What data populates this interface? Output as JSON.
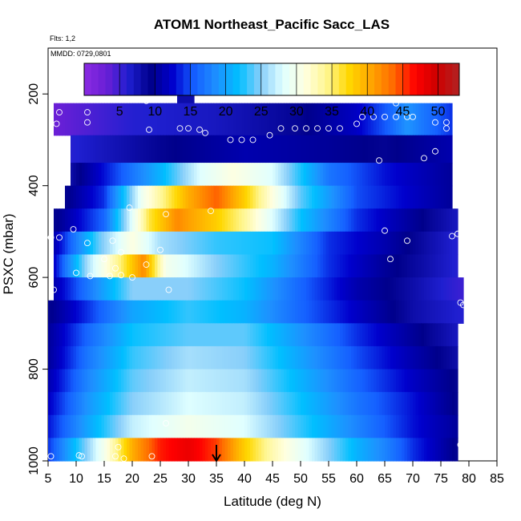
{
  "chart_data": {
    "type": "heatmap",
    "title": "ATOM1 Northeast_Pacific Sacc_LAS",
    "flights_note": "Flts: 1,2",
    "date_note": "MMDD: 0729,0801",
    "xlabel": "Latitude (deg N)",
    "ylabel": "PSXC (mbar)",
    "xlim": [
      5,
      85
    ],
    "ylim": [
      1000,
      100
    ],
    "y_reversed": true,
    "x_ticks": [
      "5",
      "10",
      "15",
      "20",
      "25",
      "30",
      "35",
      "40",
      "45",
      "50",
      "55",
      "60",
      "65",
      "70",
      "75",
      "80",
      "85"
    ],
    "y_ticks": [
      "200",
      "400",
      "600",
      "800",
      "1000"
    ],
    "colorbar": {
      "range": [
        0,
        53
      ],
      "ticks": [
        "5",
        "10",
        "15",
        "20",
        "25",
        "30",
        "35",
        "40",
        "45",
        "50"
      ],
      "colors": [
        "#8a2be2",
        "#6a1fd6",
        "#1f1fd0",
        "#00008b",
        "#0000cd",
        "#1560ff",
        "#1e90ff",
        "#00bfff",
        "#87cefa",
        "#e0ffff",
        "#ffffe0",
        "#fff68f",
        "#ffd700",
        "#ffa500",
        "#ff6a00",
        "#ff0000",
        "#cd0000",
        "#b22222"
      ],
      "grid": true
    },
    "bands": [
      {
        "p": [
          180,
          220
        ],
        "x": [
          28,
          31
        ],
        "v": [
          [
            28,
            8
          ],
          [
            31,
            8
          ]
        ]
      },
      {
        "p": [
          220,
          290
        ],
        "x": [
          6,
          77
        ],
        "v": [
          [
            6,
            3
          ],
          [
            20,
            6
          ],
          [
            35,
            7
          ],
          [
            50,
            9
          ],
          [
            60,
            12
          ],
          [
            66,
            16
          ],
          [
            69,
            19
          ],
          [
            72,
            17
          ],
          [
            77,
            14
          ]
        ]
      },
      {
        "p": [
          290,
          350
        ],
        "x": [
          9,
          77
        ],
        "v": [
          [
            9,
            6
          ],
          [
            25,
            9
          ],
          [
            40,
            11
          ],
          [
            55,
            10
          ],
          [
            65,
            9
          ],
          [
            77,
            11
          ]
        ]
      },
      {
        "p": [
          350,
          400
        ],
        "x": [
          9,
          77
        ],
        "v": [
          [
            9,
            8
          ],
          [
            15,
            13
          ],
          [
            25,
            21
          ],
          [
            32,
            28
          ],
          [
            38,
            31
          ],
          [
            45,
            28
          ],
          [
            55,
            17
          ],
          [
            65,
            13
          ],
          [
            77,
            10
          ]
        ]
      },
      {
        "p": [
          400,
          450
        ],
        "x": [
          8,
          77
        ],
        "v": [
          [
            8,
            9
          ],
          [
            15,
            14
          ],
          [
            22,
            30
          ],
          [
            30,
            40
          ],
          [
            35,
            44
          ],
          [
            40,
            38
          ],
          [
            50,
            24
          ],
          [
            60,
            15
          ],
          [
            70,
            12
          ],
          [
            77,
            10
          ]
        ]
      },
      {
        "p": [
          450,
          500
        ],
        "x": [
          6,
          78
        ],
        "v": [
          [
            6,
            9
          ],
          [
            15,
            16
          ],
          [
            23,
            36
          ],
          [
            28,
            42
          ],
          [
            35,
            38
          ],
          [
            40,
            34
          ],
          [
            50,
            22
          ],
          [
            60,
            14
          ],
          [
            70,
            10
          ],
          [
            78,
            7
          ]
        ]
      },
      {
        "p": [
          500,
          550
        ],
        "x": [
          6,
          78
        ],
        "v": [
          [
            6,
            11
          ],
          [
            14,
            24
          ],
          [
            20,
            31
          ],
          [
            25,
            26
          ],
          [
            35,
            23
          ],
          [
            45,
            22
          ],
          [
            55,
            14
          ],
          [
            65,
            11
          ],
          [
            70,
            9
          ],
          [
            78,
            6
          ]
        ]
      },
      {
        "p": [
          550,
          600
        ],
        "x": [
          6,
          78
        ],
        "v": [
          [
            6,
            12
          ],
          [
            12,
            26
          ],
          [
            18,
            35
          ],
          [
            22,
            42
          ],
          [
            26,
            30
          ],
          [
            35,
            25
          ],
          [
            45,
            21
          ],
          [
            55,
            14
          ],
          [
            65,
            10
          ],
          [
            72,
            8
          ],
          [
            78,
            6
          ]
        ]
      },
      {
        "p": [
          600,
          650
        ],
        "x": [
          6,
          79
        ],
        "v": [
          [
            6,
            11
          ],
          [
            12,
            17
          ],
          [
            20,
            25
          ],
          [
            30,
            25
          ],
          [
            40,
            22
          ],
          [
            50,
            16
          ],
          [
            60,
            11
          ],
          [
            70,
            8
          ],
          [
            79,
            5
          ]
        ]
      },
      {
        "p": [
          650,
          700
        ],
        "x": [
          5,
          79
        ],
        "v": [
          [
            5,
            9
          ],
          [
            12,
            14
          ],
          [
            20,
            20
          ],
          [
            30,
            23
          ],
          [
            40,
            21
          ],
          [
            50,
            16
          ],
          [
            60,
            12
          ],
          [
            70,
            8
          ],
          [
            79,
            6
          ]
        ]
      },
      {
        "p": [
          700,
          750
        ],
        "x": [
          5,
          78
        ],
        "v": [
          [
            5,
            10
          ],
          [
            12,
            16
          ],
          [
            20,
            22
          ],
          [
            30,
            24
          ],
          [
            40,
            24
          ],
          [
            50,
            19
          ],
          [
            60,
            14
          ],
          [
            70,
            10
          ],
          [
            78,
            7
          ]
        ]
      },
      {
        "p": [
          750,
          800
        ],
        "x": [
          5,
          78
        ],
        "v": [
          [
            5,
            10
          ],
          [
            12,
            17
          ],
          [
            20,
            23
          ],
          [
            30,
            26
          ],
          [
            40,
            25
          ],
          [
            50,
            20
          ],
          [
            60,
            15
          ],
          [
            70,
            11
          ],
          [
            78,
            8
          ]
        ]
      },
      {
        "p": [
          800,
          850
        ],
        "x": [
          5,
          78
        ],
        "v": [
          [
            5,
            11
          ],
          [
            12,
            18
          ],
          [
            20,
            24
          ],
          [
            30,
            27
          ],
          [
            40,
            26
          ],
          [
            50,
            21
          ],
          [
            60,
            16
          ],
          [
            70,
            12
          ],
          [
            78,
            9
          ]
        ]
      },
      {
        "p": [
          850,
          900
        ],
        "x": [
          5,
          78
        ],
        "v": [
          [
            5,
            12
          ],
          [
            12,
            19
          ],
          [
            20,
            25
          ],
          [
            30,
            28
          ],
          [
            40,
            27
          ],
          [
            50,
            22
          ],
          [
            60,
            17
          ],
          [
            70,
            13
          ],
          [
            78,
            9
          ]
        ]
      },
      {
        "p": [
          900,
          950
        ],
        "x": [
          5,
          78
        ],
        "v": [
          [
            5,
            13
          ],
          [
            12,
            20
          ],
          [
            20,
            27
          ],
          [
            30,
            30
          ],
          [
            40,
            28
          ],
          [
            50,
            23
          ],
          [
            60,
            18
          ],
          [
            70,
            13
          ],
          [
            78,
            10
          ]
        ]
      },
      {
        "p": [
          950,
          1000
        ],
        "x": [
          5,
          78
        ],
        "v": [
          [
            5,
            14
          ],
          [
            10,
            22
          ],
          [
            15,
            30
          ],
          [
            20,
            40
          ],
          [
            25,
            46
          ],
          [
            30,
            48
          ],
          [
            35,
            45
          ],
          [
            40,
            38
          ],
          [
            45,
            33
          ],
          [
            50,
            29
          ],
          [
            55,
            25
          ],
          [
            60,
            21
          ],
          [
            65,
            18
          ],
          [
            70,
            14
          ],
          [
            75,
            11
          ],
          [
            78,
            9
          ]
        ]
      }
    ],
    "points": [
      [
        29.5,
        195
      ],
      [
        30.5,
        195
      ],
      [
        7,
        240
      ],
      [
        12,
        240
      ],
      [
        6.5,
        265
      ],
      [
        12,
        262
      ],
      [
        22.5,
        215
      ],
      [
        23,
        278
      ],
      [
        28.5,
        275
      ],
      [
        30,
        275
      ],
      [
        32,
        278
      ],
      [
        33,
        285
      ],
      [
        37.5,
        300
      ],
      [
        39.5,
        300
      ],
      [
        41.5,
        300
      ],
      [
        44.5,
        290
      ],
      [
        46.5,
        275
      ],
      [
        49,
        275
      ],
      [
        51,
        275
      ],
      [
        53,
        275
      ],
      [
        55,
        275
      ],
      [
        57,
        275
      ],
      [
        60,
        265
      ],
      [
        61,
        250
      ],
      [
        63,
        250
      ],
      [
        65,
        250
      ],
      [
        67,
        220
      ],
      [
        67,
        250
      ],
      [
        69,
        250
      ],
      [
        70,
        250
      ],
      [
        74,
        262
      ],
      [
        76,
        262
      ],
      [
        76,
        275
      ],
      [
        74,
        325
      ],
      [
        72,
        340
      ],
      [
        64,
        345
      ],
      [
        19.5,
        448
      ],
      [
        26,
        462
      ],
      [
        34,
        455
      ],
      [
        9.5,
        495
      ],
      [
        65,
        498
      ],
      [
        69,
        520
      ],
      [
        5.5,
        513
      ],
      [
        7,
        513
      ],
      [
        12,
        525
      ],
      [
        16.5,
        520
      ],
      [
        18,
        545
      ],
      [
        15,
        560
      ],
      [
        22.5,
        572
      ],
      [
        17,
        580
      ],
      [
        25,
        540
      ],
      [
        77,
        510
      ],
      [
        78,
        505
      ],
      [
        66,
        560
      ],
      [
        10,
        590
      ],
      [
        12.5,
        597
      ],
      [
        16,
        597
      ],
      [
        18,
        595
      ],
      [
        20,
        600
      ],
      [
        6,
        627
      ],
      [
        26.5,
        627
      ],
      [
        78.5,
        655
      ],
      [
        79,
        660
      ],
      [
        26,
        918
      ],
      [
        78.5,
        965
      ],
      [
        17.5,
        970
      ],
      [
        10.5,
        988
      ],
      [
        11,
        990
      ],
      [
        5.5,
        990
      ],
      [
        17,
        990
      ],
      [
        18.5,
        995
      ],
      [
        23.5,
        990
      ]
    ],
    "marker": {
      "x": 35,
      "label": "arrow"
    }
  }
}
